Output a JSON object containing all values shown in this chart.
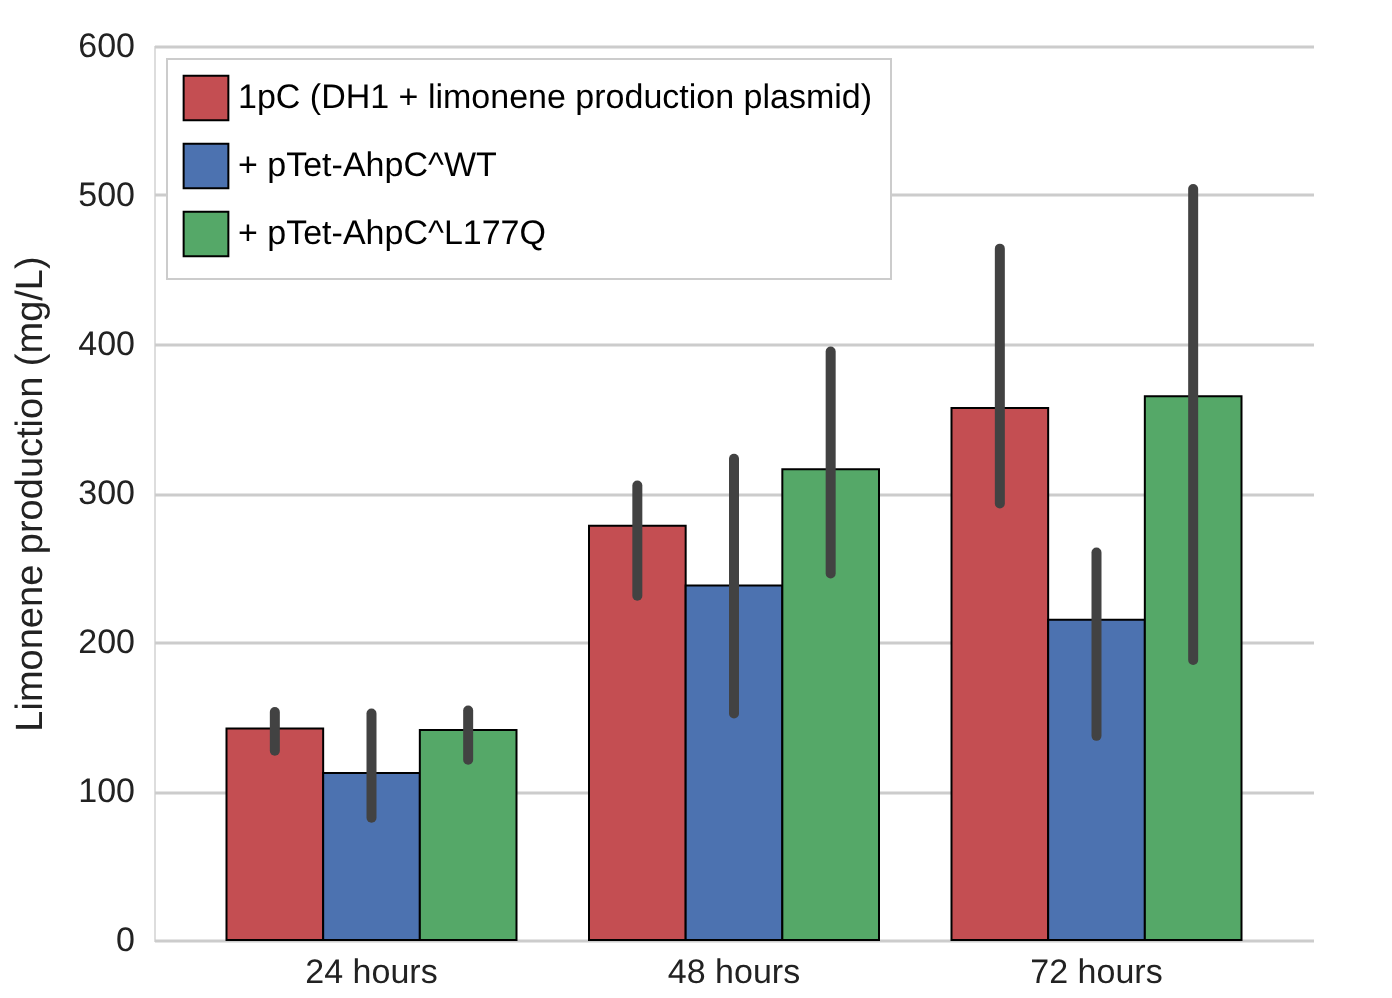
{
  "chart_data": {
    "type": "bar",
    "ylabel": "Limonene production (mg/L)",
    "categories": [
      "24 hours",
      "48 hours",
      "72 hours"
    ],
    "series": [
      {
        "name": "1pC (DH1 + limonene production plasmid)",
        "color": "#c44e52",
        "values": [
          142,
          278,
          357
        ],
        "errors": [
          [
            127,
            153
          ],
          [
            231,
            305
          ],
          [
            293,
            464
          ]
        ]
      },
      {
        "name": "+ pTet-AhpC^WT",
        "color": "#4c72b0",
        "values": [
          112,
          238,
          215
        ],
        "errors": [
          [
            82,
            152
          ],
          [
            152,
            323
          ],
          [
            137,
            260
          ]
        ]
      },
      {
        "name": "+ pTet-AhpC^L177Q",
        "color": "#55a868",
        "values": [
          141,
          316,
          365
        ],
        "errors": [
          [
            121,
            154
          ],
          [
            246,
            395
          ],
          [
            188,
            504
          ]
        ]
      }
    ],
    "ylim": [
      0,
      600
    ],
    "yticks": [
      0,
      100,
      200,
      300,
      400,
      500,
      600
    ],
    "grid": "y",
    "legend": "top left"
  }
}
